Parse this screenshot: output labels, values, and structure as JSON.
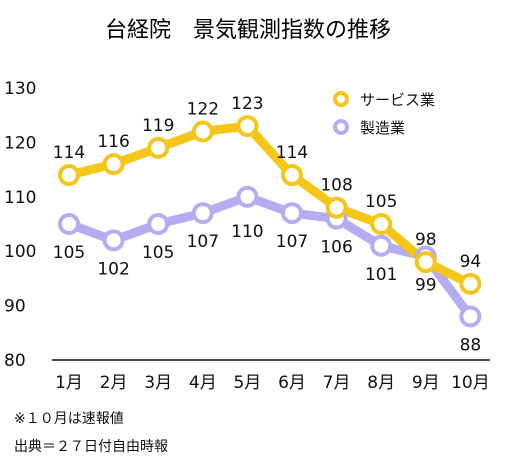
{
  "chart_data": {
    "type": "line",
    "title": "台経院　景気観測指数の推移",
    "categories": [
      "1月",
      "2月",
      "3月",
      "4月",
      "5月",
      "6月",
      "7月",
      "8月",
      "9月",
      "10月"
    ],
    "ylim": [
      80,
      130
    ],
    "yticks": [
      80,
      90,
      100,
      110,
      120,
      130
    ],
    "grid": false,
    "legend_position": "top-right",
    "series": [
      {
        "name": "サービス業",
        "color": "#F5C518",
        "values": [
          114,
          116,
          119,
          122,
          123,
          114,
          108,
          105,
          98,
          94
        ]
      },
      {
        "name": "製造業",
        "color": "#B7ACF2",
        "values": [
          105,
          102,
          105,
          107,
          110,
          107,
          106,
          101,
          99,
          88
        ]
      }
    ]
  },
  "notes": {
    "footnote": "※１０月は速報値",
    "source": "出典＝２７日付自由時報"
  }
}
